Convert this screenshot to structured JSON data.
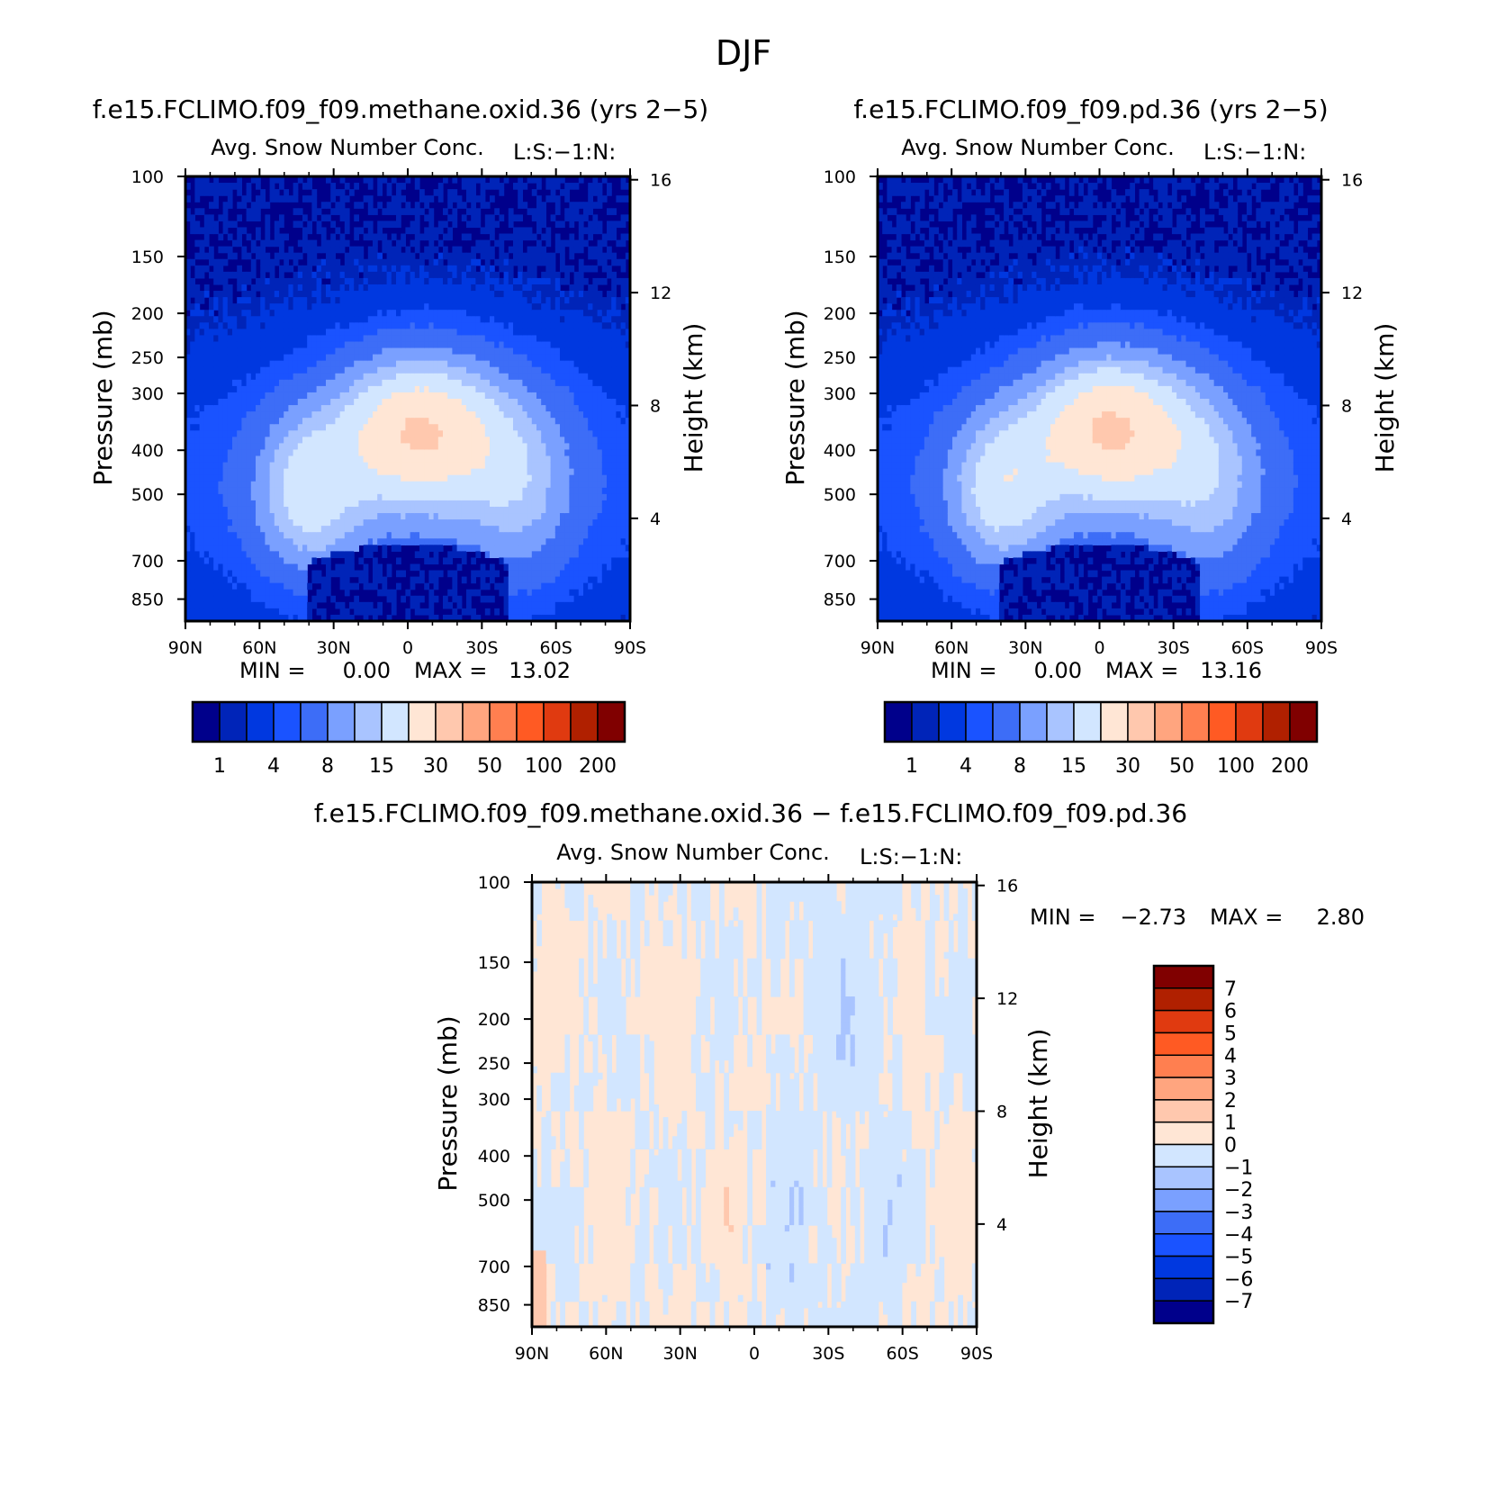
{
  "figure": {
    "title": "DJF"
  },
  "colors": {
    "abs_palette": [
      "#00008b",
      "#0024b8",
      "#0038e0",
      "#1a53ff",
      "#3d6df7",
      "#7aa0ff",
      "#a9c4ff",
      "#d2e6ff",
      "#ffe6d5",
      "#ffc8ae",
      "#ffa57f",
      "#ff7f50",
      "#ff5a23",
      "#e03a10",
      "#b02000",
      "#800000"
    ],
    "diff_palette": [
      "#00008b",
      "#0024b8",
      "#0038e0",
      "#1a53ff",
      "#3d6df7",
      "#7aa0ff",
      "#a9c4ff",
      "#d2e6ff",
      "#ffe6d5",
      "#ffc8ae",
      "#ffa57f",
      "#ff7f50",
      "#ff5a23",
      "#e03a10",
      "#b02000",
      "#800000"
    ]
  },
  "chart_data": [
    {
      "id": "panel1",
      "type": "heatmap",
      "title": "f.e15.FCLIMO.f09_f09.methane.oxid.36 (yrs 2−5)",
      "subtitle": "Avg. Snow Number Conc.",
      "units_label": "L:S:−1:N:",
      "ylabel": "Pressure (mb)",
      "y2label": "Height (km)",
      "x_ticks": [
        "90N",
        "60N",
        "30N",
        "0",
        "30S",
        "60S",
        "90S"
      ],
      "x_range": [
        90,
        -90
      ],
      "p_ticks": [
        100,
        150,
        200,
        250,
        300,
        400,
        500,
        700,
        850
      ],
      "p_range": [
        100,
        950
      ],
      "z_ticks": [
        16,
        12,
        8,
        4
      ],
      "stats": {
        "min_label": "MIN =",
        "min": "0.00",
        "max_label": "MAX =",
        "max": "13.02"
      },
      "colorbar": {
        "labels": [
          "1",
          "4",
          "8",
          "15",
          "30",
          "50",
          "100",
          "200"
        ],
        "orientation": "horizontal"
      },
      "field": {
        "core_lat": -5,
        "core_p": 360,
        "core_amp": 13.0,
        "side_lat": 40,
        "side_p": 500,
        "side_amp": 7.0
      }
    },
    {
      "id": "panel2",
      "type": "heatmap",
      "title": "f.e15.FCLIMO.f09_f09.pd.36 (yrs 2−5)",
      "subtitle": "Avg. Snow Number Conc.",
      "units_label": "L:S:−1:N:",
      "ylabel": "Pressure (mb)",
      "y2label": "Height (km)",
      "x_ticks": [
        "90N",
        "60N",
        "30N",
        "0",
        "30S",
        "60S",
        "90S"
      ],
      "x_range": [
        90,
        -90
      ],
      "p_ticks": [
        100,
        150,
        200,
        250,
        300,
        400,
        500,
        700,
        850
      ],
      "p_range": [
        100,
        950
      ],
      "z_ticks": [
        16,
        12,
        8,
        4
      ],
      "stats": {
        "min_label": "MIN =",
        "min": "0.00",
        "max_label": "MAX =",
        "max": "13.16"
      },
      "colorbar": {
        "labels": [
          "1",
          "4",
          "8",
          "15",
          "30",
          "50",
          "100",
          "200"
        ],
        "orientation": "horizontal"
      },
      "field": {
        "core_lat": -5,
        "core_p": 355,
        "core_amp": 13.2,
        "side_lat": 40,
        "side_p": 490,
        "side_amp": 7.2
      }
    },
    {
      "id": "panel3",
      "type": "heatmap",
      "title": "f.e15.FCLIMO.f09_f09.methane.oxid.36 − f.e15.FCLIMO.f09_f09.pd.36",
      "subtitle": "Avg. Snow Number Conc.",
      "units_label": "L:S:−1:N:",
      "ylabel": "Pressure (mb)",
      "y2label": "Height (km)",
      "x_ticks": [
        "90N",
        "60N",
        "30N",
        "0",
        "30S",
        "60S",
        "90S"
      ],
      "x_range": [
        90,
        -90
      ],
      "p_ticks": [
        100,
        150,
        200,
        250,
        300,
        400,
        500,
        700,
        850
      ],
      "p_range": [
        100,
        950
      ],
      "z_ticks": [
        16,
        12,
        8,
        4
      ],
      "stats": {
        "min_label": "MIN =",
        "min": "−2.73",
        "max_label": "MAX =",
        "max": "2.80"
      },
      "colorbar": {
        "labels": [
          "7",
          "6",
          "5",
          "4",
          "3",
          "2",
          "1",
          "0",
          "−1",
          "−2",
          "−3",
          "−4",
          "−5",
          "−6",
          "−7"
        ],
        "orientation": "vertical"
      }
    }
  ]
}
